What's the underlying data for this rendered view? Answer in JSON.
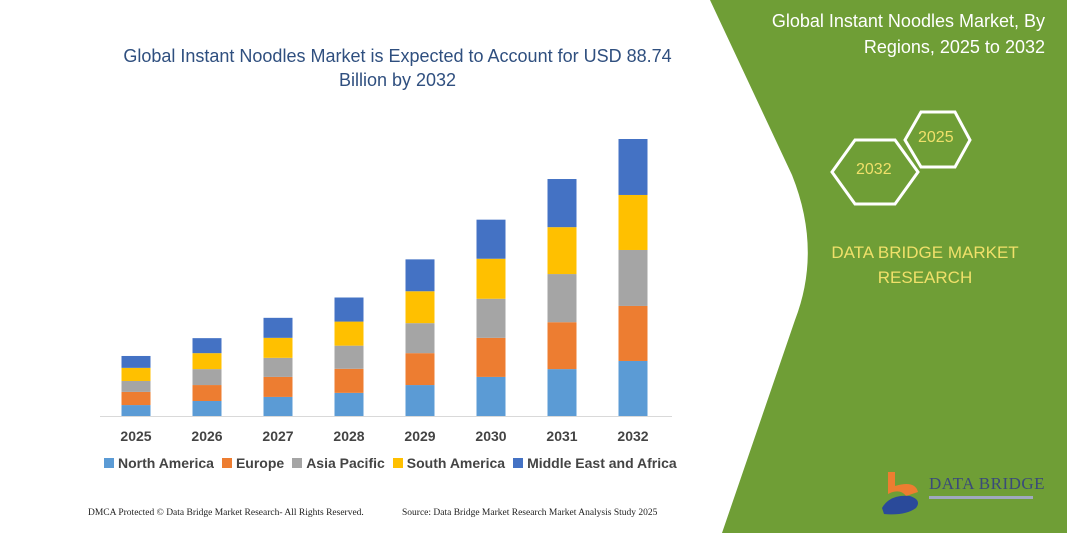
{
  "chart_data": {
    "type": "bar",
    "stacked": true,
    "title": "Global Instant Noodles Market is Expected to Account for USD 88.74 Billion by 2032",
    "xlabel": "",
    "ylabel": "",
    "grid": false,
    "legend_position": "bottom",
    "categories": [
      "2025",
      "2026",
      "2027",
      "2028",
      "2029",
      "2030",
      "2031",
      "2032"
    ],
    "ylim": [
      0,
      90
    ],
    "series": [
      {
        "name": "North America",
        "color": "#5b9bd5",
        "values": [
          3.5,
          4.8,
          6.1,
          7.4,
          9.9,
          12.5,
          15.0,
          17.6
        ]
      },
      {
        "name": "Europe",
        "color": "#ed7d31",
        "values": [
          4.2,
          5.1,
          6.4,
          7.7,
          10.2,
          12.5,
          15.0,
          17.6
        ]
      },
      {
        "name": "Asia Pacific",
        "color": "#a5a5a5",
        "values": [
          3.5,
          5.1,
          6.1,
          7.4,
          9.6,
          12.5,
          15.4,
          17.9
        ]
      },
      {
        "name": "South America",
        "color": "#ffc000",
        "values": [
          4.2,
          5.1,
          6.4,
          7.7,
          10.2,
          12.8,
          15.0,
          17.6
        ]
      },
      {
        "name": "Middle East and Africa",
        "color": "#4472c4",
        "values": [
          3.8,
          4.8,
          6.4,
          7.7,
          10.2,
          12.5,
          15.4,
          17.9
        ]
      }
    ]
  },
  "panel": {
    "title": "Global Instant Noodles Market, By Regions, 2025 to 2032",
    "hex_start": "2025",
    "hex_end": "2032",
    "brand": "DATA BRIDGE MARKET RESEARCH",
    "logo_text": "DATA BRIDGE",
    "green": "#6f9e36",
    "accent_text": "#f0e06a"
  },
  "footer": {
    "left": "DMCA Protected © Data Bridge Market Research- All Rights Reserved.",
    "right": "Source: Data Bridge Market Research Market Analysis Study 2025"
  }
}
